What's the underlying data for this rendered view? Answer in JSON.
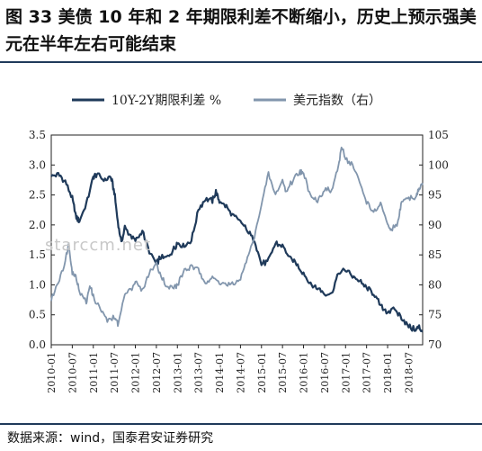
{
  "header": {
    "title": "图 33  美债 10 年和 2 年期限利差不断缩小，历史上预示强美元在半年左右可能结束"
  },
  "footer": {
    "source": "数据来源：wind，国泰君安证券研究"
  },
  "watermark": "starccm.net",
  "chart_data": {
    "type": "line",
    "title": "",
    "legend_placement": "top-center",
    "x": [
      "2010-01",
      "2010-07",
      "2011-01",
      "2011-07",
      "2012-01",
      "2012-07",
      "2013-01",
      "2013-07",
      "2014-01",
      "2014-07",
      "2015-01",
      "2015-07",
      "2016-01",
      "2016-07",
      "2017-01",
      "2017-07",
      "2018-01",
      "2018-07"
    ],
    "x_range": [
      "2010-01",
      "2018-11"
    ],
    "y_left": {
      "ticks": [
        "0.0",
        "0.5",
        "1.0",
        "1.5",
        "2.0",
        "2.5",
        "3.0",
        "3.5"
      ],
      "range": [
        0,
        3.5
      ]
    },
    "y_right": {
      "ticks": [
        "70",
        "75",
        "80",
        "85",
        "90",
        "95",
        "100",
        "105"
      ],
      "range": [
        70,
        105
      ]
    },
    "series": [
      {
        "name": "10Y-2Y期限利差 %",
        "axis": "left",
        "color": "#1f3a5a",
        "points": [
          [
            "2010-01",
            2.82
          ],
          [
            "2010-03",
            2.85
          ],
          [
            "2010-05",
            2.72
          ],
          [
            "2010-07",
            2.45
          ],
          [
            "2010-08",
            2.15
          ],
          [
            "2010-09",
            2.05
          ],
          [
            "2010-11",
            2.35
          ],
          [
            "2011-01",
            2.8
          ],
          [
            "2011-02",
            2.85
          ],
          [
            "2011-04",
            2.75
          ],
          [
            "2011-06",
            2.8
          ],
          [
            "2011-07",
            2.55
          ],
          [
            "2011-08",
            2.05
          ],
          [
            "2011-09",
            1.7
          ],
          [
            "2011-10",
            1.95
          ],
          [
            "2011-12",
            1.8
          ],
          [
            "2012-01",
            1.75
          ],
          [
            "2012-03",
            1.9
          ],
          [
            "2012-05",
            1.55
          ],
          [
            "2012-07",
            1.35
          ],
          [
            "2012-08",
            1.45
          ],
          [
            "2012-10",
            1.45
          ],
          [
            "2012-12",
            1.6
          ],
          [
            "2013-01",
            1.7
          ],
          [
            "2013-03",
            1.65
          ],
          [
            "2013-05",
            1.75
          ],
          [
            "2013-07",
            2.25
          ],
          [
            "2013-09",
            2.45
          ],
          [
            "2013-11",
            2.4
          ],
          [
            "2013-12",
            2.55
          ],
          [
            "2014-01",
            2.4
          ],
          [
            "2014-03",
            2.3
          ],
          [
            "2014-05",
            2.15
          ],
          [
            "2014-07",
            2.05
          ],
          [
            "2014-09",
            1.9
          ],
          [
            "2014-11",
            1.75
          ],
          [
            "2015-01",
            1.35
          ],
          [
            "2015-03",
            1.4
          ],
          [
            "2015-05",
            1.7
          ],
          [
            "2015-07",
            1.65
          ],
          [
            "2015-09",
            1.45
          ],
          [
            "2015-11",
            1.35
          ],
          [
            "2016-01",
            1.2
          ],
          [
            "2016-03",
            1.0
          ],
          [
            "2016-05",
            0.95
          ],
          [
            "2016-07",
            0.85
          ],
          [
            "2016-09",
            0.85
          ],
          [
            "2016-11",
            1.2
          ],
          [
            "2017-01",
            1.25
          ],
          [
            "2017-03",
            1.15
          ],
          [
            "2017-05",
            1.05
          ],
          [
            "2017-07",
            0.95
          ],
          [
            "2017-09",
            0.85
          ],
          [
            "2017-11",
            0.65
          ],
          [
            "2018-01",
            0.55
          ],
          [
            "2018-03",
            0.6
          ],
          [
            "2018-05",
            0.45
          ],
          [
            "2018-07",
            0.3
          ],
          [
            "2018-09",
            0.25
          ],
          [
            "2018-10",
            0.3
          ],
          [
            "2018-11",
            0.22
          ]
        ]
      },
      {
        "name": "美元指数（右）",
        "axis": "right",
        "color": "#8296ad",
        "points": [
          [
            "2010-01",
            77.5
          ],
          [
            "2010-03",
            80.5
          ],
          [
            "2010-05",
            84.0
          ],
          [
            "2010-06",
            87.0
          ],
          [
            "2010-07",
            82.0
          ],
          [
            "2010-08",
            81.5
          ],
          [
            "2010-09",
            79.0
          ],
          [
            "2010-11",
            77.0
          ],
          [
            "2010-12",
            80.0
          ],
          [
            "2011-01",
            78.0
          ],
          [
            "2011-03",
            76.0
          ],
          [
            "2011-05",
            74.0
          ],
          [
            "2011-07",
            74.5
          ],
          [
            "2011-08",
            73.5
          ],
          [
            "2011-10",
            78.5
          ],
          [
            "2011-12",
            79.5
          ],
          [
            "2012-01",
            80.5
          ],
          [
            "2012-03",
            79.0
          ],
          [
            "2012-05",
            82.0
          ],
          [
            "2012-07",
            83.5
          ],
          [
            "2012-08",
            82.0
          ],
          [
            "2012-10",
            79.5
          ],
          [
            "2012-12",
            79.5
          ],
          [
            "2013-01",
            80.0
          ],
          [
            "2013-03",
            82.5
          ],
          [
            "2013-05",
            83.0
          ],
          [
            "2013-07",
            82.5
          ],
          [
            "2013-09",
            80.5
          ],
          [
            "2013-11",
            81.0
          ],
          [
            "2014-01",
            80.5
          ],
          [
            "2014-03",
            80.0
          ],
          [
            "2014-05",
            80.0
          ],
          [
            "2014-07",
            81.0
          ],
          [
            "2014-09",
            84.5
          ],
          [
            "2014-11",
            88.0
          ],
          [
            "2015-01",
            93.5
          ],
          [
            "2015-03",
            98.5
          ],
          [
            "2015-05",
            95.0
          ],
          [
            "2015-07",
            97.5
          ],
          [
            "2015-08",
            95.5
          ],
          [
            "2015-10",
            97.5
          ],
          [
            "2015-12",
            99.0
          ],
          [
            "2016-01",
            98.5
          ],
          [
            "2016-03",
            95.0
          ],
          [
            "2016-05",
            94.0
          ],
          [
            "2016-07",
            96.0
          ],
          [
            "2016-09",
            95.5
          ],
          [
            "2016-11",
            100.0
          ],
          [
            "2016-12",
            103.0
          ],
          [
            "2017-01",
            101.0
          ],
          [
            "2017-03",
            100.0
          ],
          [
            "2017-05",
            97.0
          ],
          [
            "2017-07",
            94.0
          ],
          [
            "2017-09",
            92.0
          ],
          [
            "2017-11",
            93.5
          ],
          [
            "2018-01",
            90.0
          ],
          [
            "2018-02",
            89.0
          ],
          [
            "2018-04",
            90.5
          ],
          [
            "2018-05",
            94.0
          ],
          [
            "2018-07",
            94.5
          ],
          [
            "2018-09",
            94.5
          ],
          [
            "2018-10",
            96.0
          ],
          [
            "2018-11",
            97.0
          ]
        ]
      }
    ]
  }
}
